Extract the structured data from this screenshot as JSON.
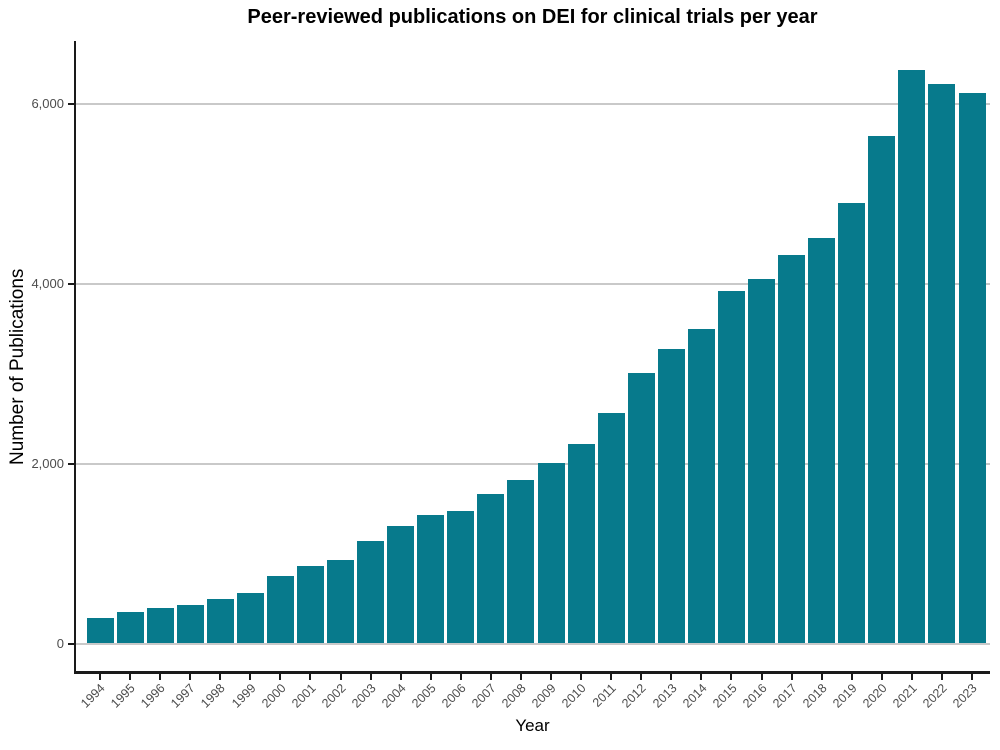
{
  "title": "Peer-reviewed publications on DEI for clinical trials per year",
  "chart_data": {
    "type": "bar",
    "title": "Peer-reviewed publications on DEI for clinical trials per year",
    "xlabel": "Year",
    "ylabel": "Number of Publications",
    "categories": [
      "1994",
      "1995",
      "1996",
      "1997",
      "1998",
      "1999",
      "2000",
      "2001",
      "2002",
      "2003",
      "2004",
      "2005",
      "2006",
      "2007",
      "2008",
      "2009",
      "2010",
      "2011",
      "2012",
      "2013",
      "2014",
      "2015",
      "2016",
      "2017",
      "2018",
      "2019",
      "2020",
      "2021",
      "2022",
      "2023"
    ],
    "values": [
      280,
      345,
      390,
      425,
      490,
      560,
      750,
      860,
      925,
      1140,
      1300,
      1430,
      1465,
      1655,
      1815,
      2005,
      2220,
      2555,
      3005,
      3270,
      3490,
      3915,
      4050,
      4315,
      4500,
      4890,
      5635,
      6370,
      6220,
      6120
    ],
    "ylim": [
      0,
      6650
    ],
    "yticks": [
      0,
      2000,
      4000,
      6000
    ],
    "ytick_labels": [
      "0",
      "2,000",
      "4,000",
      "6,000"
    ],
    "grid": "horizontal-major-only",
    "legend": "none",
    "bar_color": "#077a8c",
    "gridline_color": "#c9c9c9",
    "axis_line_color": "#1a1a1a",
    "tick_label_color": "#4d4d4d"
  }
}
